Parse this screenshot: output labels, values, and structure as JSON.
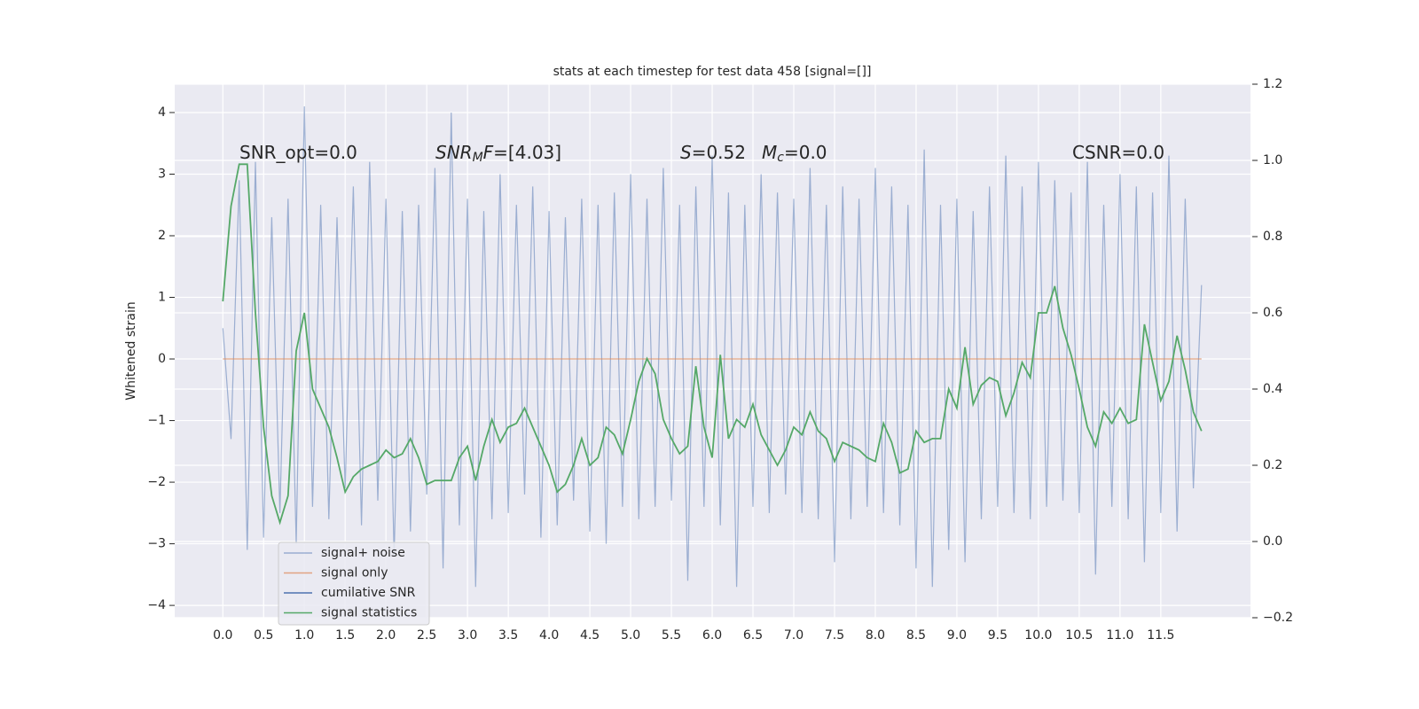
{
  "chart_data": {
    "type": "line",
    "title": "stats at each timestep for test data 458 [signal=[]]",
    "ylabel": "Whitened strain",
    "grid": true,
    "legend": "lower left",
    "xlim": [
      -0.59,
      12.6
    ],
    "ylim": [
      -4.2,
      4.46
    ],
    "y2lim": [
      -0.2,
      1.2
    ],
    "xticks": [
      {
        "value": 0,
        "label": "0.0"
      },
      {
        "value": 0.5,
        "label": "0.5"
      },
      {
        "value": 1,
        "label": "1.0"
      },
      {
        "value": 1.5,
        "label": "1.5"
      },
      {
        "value": 2,
        "label": "2.0"
      },
      {
        "value": 2.5,
        "label": "2.5"
      },
      {
        "value": 3,
        "label": "3.0"
      },
      {
        "value": 3.5,
        "label": "3.5"
      },
      {
        "value": 4,
        "label": "4.0"
      },
      {
        "value": 4.5,
        "label": "4.5"
      },
      {
        "value": 5,
        "label": "5.0"
      },
      {
        "value": 5.5,
        "label": "5.5"
      },
      {
        "value": 6,
        "label": "6.0"
      },
      {
        "value": 6.5,
        "label": "6.5"
      },
      {
        "value": 7,
        "label": "7.0"
      },
      {
        "value": 7.5,
        "label": "7.5"
      },
      {
        "value": 8,
        "label": "8.0"
      },
      {
        "value": 8.5,
        "label": "8.5"
      },
      {
        "value": 9,
        "label": "9.0"
      },
      {
        "value": 9.5,
        "label": "9.5"
      },
      {
        "value": 10,
        "label": "10.0"
      },
      {
        "value": 10.5,
        "label": "10.5"
      },
      {
        "value": 11,
        "label": "11.0"
      },
      {
        "value": 11.5,
        "label": "11.5"
      }
    ],
    "yticks": [
      {
        "value": -4,
        "label": "−4"
      },
      {
        "value": -3,
        "label": "−3"
      },
      {
        "value": -2,
        "label": "−2"
      },
      {
        "value": -1,
        "label": "−1"
      },
      0,
      1,
      2,
      3,
      4
    ],
    "y2ticks": [
      {
        "value": -0.2,
        "label": "−0.2"
      },
      {
        "value": 0,
        "label": "0.0"
      },
      {
        "value": 0.2,
        "label": "0.2"
      },
      {
        "value": 0.4,
        "label": "0.4"
      },
      {
        "value": 0.6,
        "label": "0.6"
      },
      {
        "value": 0.8,
        "label": "0.8"
      },
      {
        "value": 1,
        "label": "1.0"
      },
      {
        "value": 1.2,
        "label": "1.2"
      }
    ],
    "annotations": [
      [
        {
          "text": "SNR_opt=0.0"
        }
      ],
      [
        {
          "text": "SNR",
          "italic": true
        },
        {
          "text": "M",
          "italic": true,
          "sub": true
        },
        {
          "text": "F",
          "italic": true
        },
        {
          "text": "=[4.03]"
        }
      ],
      [
        {
          "text": "S",
          "italic": true
        },
        {
          "text": "=0.52"
        }
      ],
      [
        {
          "text": "M",
          "italic": true
        },
        {
          "text": "c",
          "italic": true,
          "sub": true
        },
        {
          "text": "=0.0"
        }
      ],
      [
        {
          "text": "CSNR=0.0"
        }
      ]
    ],
    "x": [
      0,
      0.1,
      0.2,
      0.3,
      0.4,
      0.5,
      0.6,
      0.7,
      0.8,
      0.9,
      1,
      1.1,
      1.2,
      1.3,
      1.4,
      1.5,
      1.6,
      1.7,
      1.8,
      1.9,
      2,
      2.1,
      2.2,
      2.3,
      2.4,
      2.5,
      2.6,
      2.7,
      2.8,
      2.9,
      3,
      3.1,
      3.2,
      3.3,
      3.4,
      3.5,
      3.6,
      3.7,
      3.8,
      3.9,
      4,
      4.1,
      4.2,
      4.3,
      4.4,
      4.5,
      4.6,
      4.7,
      4.8,
      4.9,
      5,
      5.1,
      5.2,
      5.3,
      5.4,
      5.5,
      5.6,
      5.7,
      5.8,
      5.9,
      6,
      6.1,
      6.2,
      6.3,
      6.4,
      6.5,
      6.6,
      6.7,
      6.8,
      6.9,
      7,
      7.1,
      7.2,
      7.3,
      7.4,
      7.5,
      7.6,
      7.7,
      7.8,
      7.9,
      8,
      8.1,
      8.2,
      8.3,
      8.4,
      8.5,
      8.6,
      8.7,
      8.8,
      8.9,
      9,
      9.1,
      9.2,
      9.3,
      9.4,
      9.5,
      9.6,
      9.7,
      9.8,
      9.9,
      10,
      10.1,
      10.2,
      10.3,
      10.4,
      10.5,
      10.6,
      10.7,
      10.8,
      10.9,
      11,
      11.1,
      11.2,
      11.3,
      11.4,
      11.5,
      11.6,
      11.7,
      11.8,
      11.9,
      12
    ],
    "series": [
      {
        "name": "signal+ noise",
        "color": "#4c72b0",
        "opacity": 0.5,
        "values": [
          0.5,
          -1.3,
          2.9,
          -3.1,
          3.2,
          -2.9,
          2.3,
          -2.5,
          2.6,
          -3.0,
          4.1,
          -2.4,
          2.5,
          -2.6,
          2.3,
          -2.1,
          2.8,
          -2.7,
          3.2,
          -2.3,
          2.6,
          -3.2,
          2.4,
          -2.8,
          2.5,
          -2.2,
          3.1,
          -3.4,
          4.0,
          -2.7,
          2.6,
          -3.7,
          2.4,
          -2.6,
          3.0,
          -2.5,
          2.5,
          -2.2,
          2.8,
          -2.9,
          2.4,
          -2.7,
          2.3,
          -2.3,
          2.6,
          -2.8,
          2.5,
          -3.0,
          2.7,
          -2.4,
          3.0,
          -2.6,
          2.6,
          -2.4,
          3.1,
          -2.3,
          2.5,
          -3.6,
          2.8,
          -2.4,
          3.3,
          -2.7,
          2.7,
          -3.7,
          2.5,
          -2.4,
          3.0,
          -2.5,
          2.7,
          -2.2,
          2.6,
          -2.5,
          3.1,
          -2.6,
          2.5,
          -3.3,
          2.8,
          -2.6,
          2.6,
          -2.4,
          3.1,
          -2.5,
          2.8,
          -2.7,
          2.5,
          -3.4,
          3.4,
          -3.7,
          2.5,
          -3.1,
          2.6,
          -3.3,
          2.4,
          -2.6,
          2.8,
          -2.4,
          3.3,
          -2.5,
          2.8,
          -2.6,
          3.2,
          -2.4,
          2.9,
          -2.3,
          2.7,
          -2.5,
          3.2,
          -3.5,
          2.5,
          -2.4,
          3.0,
          -2.6,
          2.8,
          -3.3,
          2.7,
          -2.5,
          3.3,
          -2.8,
          2.6,
          -2.1,
          1.2
        ]
      },
      {
        "name": "signal only",
        "color": "#dd8452",
        "opacity": 0.7,
        "values": [
          0,
          0,
          0,
          0,
          0,
          0,
          0,
          0,
          0,
          0,
          0,
          0,
          0,
          0,
          0,
          0,
          0,
          0,
          0,
          0,
          0,
          0,
          0,
          0,
          0,
          0,
          0,
          0,
          0,
          0,
          0,
          0,
          0,
          0,
          0,
          0,
          0,
          0,
          0,
          0,
          0,
          0,
          0,
          0,
          0,
          0,
          0,
          0,
          0,
          0,
          0,
          0,
          0,
          0,
          0,
          0,
          0,
          0,
          0,
          0,
          0,
          0,
          0,
          0,
          0,
          0,
          0,
          0,
          0,
          0,
          0,
          0,
          0,
          0,
          0,
          0,
          0,
          0,
          0,
          0,
          0,
          0,
          0,
          0,
          0,
          0,
          0,
          0,
          0,
          0,
          0,
          0,
          0,
          0,
          0,
          0,
          0,
          0,
          0,
          0,
          0,
          0,
          0,
          0,
          0,
          0,
          0,
          0,
          0,
          0,
          0,
          0,
          0,
          0,
          0,
          0,
          0,
          0,
          0,
          0,
          0
        ]
      },
      {
        "name": "cumilative SNR",
        "color": "#4c72b0",
        "opacity": 1,
        "values": [
          null,
          null,
          null,
          null,
          null,
          null,
          null,
          null,
          null,
          null,
          null,
          null,
          null,
          null,
          null,
          null,
          null,
          null,
          null,
          null,
          null,
          null,
          null,
          null,
          null,
          null,
          null,
          null,
          null,
          null,
          null,
          null,
          null,
          null,
          null,
          null,
          null,
          null,
          null,
          null,
          null,
          null,
          null,
          null,
          null,
          null,
          null,
          null,
          null,
          null,
          null,
          null,
          null,
          null,
          null,
          null,
          null,
          null,
          null,
          null,
          null,
          null,
          null,
          null,
          null,
          null,
          null,
          null,
          null,
          null,
          null,
          null,
          null,
          null,
          null,
          null,
          null,
          null,
          null,
          null,
          null,
          null,
          null,
          null,
          null,
          null,
          null,
          null,
          null,
          null,
          null,
          null,
          null,
          null,
          null,
          null,
          null,
          null,
          null,
          null,
          null,
          null,
          null,
          null,
          null,
          null,
          null,
          null,
          null,
          null,
          null,
          null,
          null,
          null,
          null,
          null,
          null,
          null,
          null,
          null,
          null
        ]
      },
      {
        "name": "signal statistics",
        "color": "#55a868",
        "opacity": 1,
        "axis": "y2",
        "values": [
          0.63,
          0.88,
          0.99,
          0.99,
          0.6,
          0.3,
          0.12,
          0.05,
          0.12,
          0.5,
          0.6,
          0.4,
          0.35,
          0.3,
          0.22,
          0.13,
          0.17,
          0.19,
          0.2,
          0.21,
          0.24,
          0.22,
          0.23,
          0.27,
          0.22,
          0.15,
          0.16,
          0.16,
          0.16,
          0.22,
          0.25,
          0.16,
          0.25,
          0.32,
          0.26,
          0.3,
          0.31,
          0.35,
          0.3,
          0.25,
          0.2,
          0.13,
          0.15,
          0.2,
          0.27,
          0.2,
          0.22,
          0.3,
          0.28,
          0.23,
          0.32,
          0.42,
          0.48,
          0.44,
          0.32,
          0.27,
          0.23,
          0.25,
          0.46,
          0.3,
          0.22,
          0.49,
          0.27,
          0.32,
          0.3,
          0.36,
          0.28,
          0.24,
          0.2,
          0.24,
          0.3,
          0.28,
          0.34,
          0.29,
          0.27,
          0.21,
          0.26,
          0.25,
          0.24,
          0.22,
          0.21,
          0.31,
          0.26,
          0.18,
          0.19,
          0.29,
          0.26,
          0.27,
          0.27,
          0.4,
          0.35,
          0.51,
          0.36,
          0.41,
          0.43,
          0.42,
          0.33,
          0.39,
          0.47,
          0.43,
          0.6,
          0.6,
          0.67,
          0.56,
          0.49,
          0.4,
          0.3,
          0.25,
          0.34,
          0.31,
          0.35,
          0.31,
          0.32,
          0.57,
          0.47,
          0.37,
          0.42,
          0.54,
          0.45,
          0.34,
          0.29
        ]
      }
    ]
  }
}
